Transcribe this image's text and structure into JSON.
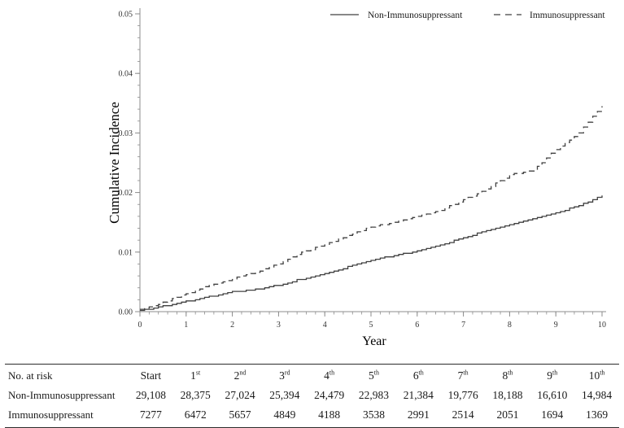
{
  "chart_data": {
    "type": "line",
    "title": "",
    "xlabel": "Year",
    "ylabel": "Cumulative Incidence",
    "xlim": [
      0,
      10
    ],
    "ylim": [
      0,
      0.05
    ],
    "x_major_ticks": [
      0,
      1,
      2,
      3,
      4,
      5,
      6,
      7,
      8,
      9,
      10
    ],
    "y_major_tick_labels": [
      "0.00",
      "0.01",
      "0.02",
      "0.03",
      "0.04",
      "0.05"
    ],
    "y_major_tick_values": [
      0,
      0.01,
      0.02,
      0.03,
      0.04,
      0.05
    ],
    "x_minor_step": 0.2,
    "y_minor_step": 0.002,
    "grid": "off",
    "legend_position": "top",
    "line_color": "#404040",
    "axis_color": "#8c8c8c",
    "series": [
      {
        "name": "Non-Immunosuppressant",
        "style": "solid",
        "x": [
          0,
          0.5,
          1,
          1.5,
          2,
          2.5,
          3,
          3.5,
          4,
          4.5,
          5,
          5.5,
          6,
          6.5,
          7,
          7.5,
          8,
          8.5,
          9,
          9.5,
          10
        ],
        "values": [
          0.0002,
          0.0009,
          0.0017,
          0.0025,
          0.0033,
          0.0037,
          0.0045,
          0.0055,
          0.0064,
          0.0075,
          0.0087,
          0.0094,
          0.0102,
          0.0112,
          0.0124,
          0.0136,
          0.0146,
          0.0155,
          0.0166,
          0.0178,
          0.0195
        ]
      },
      {
        "name": "Immunosuppressant",
        "style": "dashed",
        "x": [
          0,
          0.5,
          1,
          1.5,
          2,
          2.5,
          3,
          3.5,
          4,
          4.5,
          5,
          5.5,
          6,
          6.5,
          7,
          7.5,
          8,
          8.5,
          9,
          9.5,
          10
        ],
        "values": [
          0.0004,
          0.0015,
          0.003,
          0.0044,
          0.0055,
          0.0066,
          0.008,
          0.01,
          0.0112,
          0.0128,
          0.0142,
          0.015,
          0.016,
          0.017,
          0.0188,
          0.0205,
          0.023,
          0.0237,
          0.0272,
          0.03,
          0.0345
        ]
      }
    ]
  },
  "risk_table": {
    "header_label": "No. at risk",
    "columns": [
      {
        "base": "Start",
        "sup": ""
      },
      {
        "base": "1",
        "sup": "st"
      },
      {
        "base": "2",
        "sup": "nd"
      },
      {
        "base": "3",
        "sup": "rd"
      },
      {
        "base": "4",
        "sup": "th"
      },
      {
        "base": "5",
        "sup": "th"
      },
      {
        "base": "6",
        "sup": "th"
      },
      {
        "base": "7",
        "sup": "th"
      },
      {
        "base": "8",
        "sup": "th"
      },
      {
        "base": "9",
        "sup": "th"
      },
      {
        "base": "10",
        "sup": "th"
      }
    ],
    "rows": [
      {
        "label": "Non-Immunosuppressant",
        "values": [
          "29,108",
          "28,375",
          "27,024",
          "25,394",
          "24,479",
          "22,983",
          "21,384",
          "19,776",
          "18,188",
          "16,610",
          "14,984"
        ]
      },
      {
        "label": "Immunosuppressant",
        "values": [
          "7277",
          "6472",
          "5657",
          "4849",
          "4188",
          "3538",
          "2991",
          "2514",
          "2051",
          "1694",
          "1369"
        ]
      }
    ]
  }
}
